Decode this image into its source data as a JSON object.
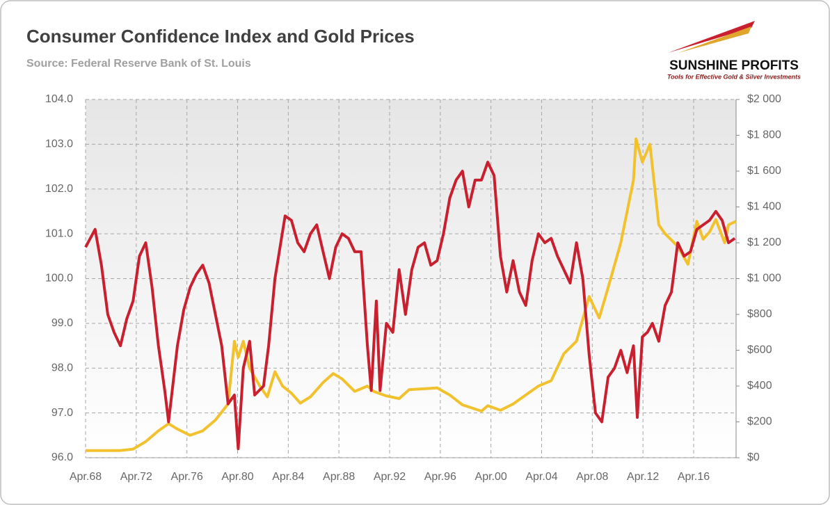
{
  "chart_data": {
    "type": "line",
    "title": "Consumer Confidence Index and Gold Prices",
    "subtitle": "Source: Federal Reserve Bank of St. Louis",
    "xlim": [
      1968.25,
      2019.6
    ],
    "xticks": [
      {
        "value": 1968.25,
        "label": "Apr.68"
      },
      {
        "value": 1972.25,
        "label": "Apr.72"
      },
      {
        "value": 1976.25,
        "label": "Apr.76"
      },
      {
        "value": 1980.25,
        "label": "Apr.80"
      },
      {
        "value": 1984.25,
        "label": "Apr.84"
      },
      {
        "value": 1988.25,
        "label": "Apr.88"
      },
      {
        "value": 1992.25,
        "label": "Apr.92"
      },
      {
        "value": 1996.25,
        "label": "Apr.96"
      },
      {
        "value": 2000.25,
        "label": "Apr.00"
      },
      {
        "value": 2004.25,
        "label": "Apr.04"
      },
      {
        "value": 2008.25,
        "label": "Apr.08"
      },
      {
        "value": 2012.25,
        "label": "Apr.12"
      },
      {
        "value": 2016.25,
        "label": "Apr.16"
      }
    ],
    "ylim": [
      96,
      104
    ],
    "yticks": [
      {
        "value": 96,
        "label": "96.0"
      },
      {
        "value": 97,
        "label": "97.0"
      },
      {
        "value": 98,
        "label": "98.0"
      },
      {
        "value": 99,
        "label": "99.0"
      },
      {
        "value": 100,
        "label": "100.0"
      },
      {
        "value": 101,
        "label": "101.0"
      },
      {
        "value": 102,
        "label": "102.0"
      },
      {
        "value": 103,
        "label": "103.0"
      },
      {
        "value": 104,
        "label": "104.0"
      }
    ],
    "y2lim": [
      0,
      2000
    ],
    "y2ticks": [
      {
        "value": 0,
        "label": "$0"
      },
      {
        "value": 200,
        "label": "$200"
      },
      {
        "value": 400,
        "label": "$400"
      },
      {
        "value": 600,
        "label": "$600"
      },
      {
        "value": 800,
        "label": "$800"
      },
      {
        "value": 1000,
        "label": "$1 000"
      },
      {
        "value": 1200,
        "label": "$1 200"
      },
      {
        "value": 1400,
        "label": "$1 400"
      },
      {
        "value": 1600,
        "label": "$1 600"
      },
      {
        "value": 1800,
        "label": "$1 800"
      },
      {
        "value": 2000,
        "label": "$2 000"
      }
    ],
    "grid": true,
    "series": [
      {
        "color": "#c8202f",
        "x": [
          1968.25,
          1969.0,
          1969.5,
          1970.0,
          1970.5,
          1971.0,
          1971.5,
          1972.0,
          1972.5,
          1973.0,
          1973.5,
          1974.0,
          1974.5,
          1974.8,
          1975.5,
          1976.0,
          1976.5,
          1977.0,
          1977.5,
          1978.0,
          1978.5,
          1979.0,
          1979.5,
          1980.0,
          1980.3,
          1980.7,
          1981.2,
          1981.6,
          1982.3,
          1982.7,
          1983.2,
          1983.6,
          1984.0,
          1984.5,
          1985.0,
          1985.5,
          1986.0,
          1986.5,
          1987.0,
          1987.5,
          1988.0,
          1988.5,
          1989.0,
          1989.5,
          1990.0,
          1990.5,
          1990.8,
          1991.2,
          1991.5,
          1992.0,
          1992.5,
          1993.0,
          1993.5,
          1994.0,
          1994.5,
          1995.0,
          1995.5,
          1996.0,
          1996.5,
          1997.0,
          1997.5,
          1998.0,
          1998.5,
          1999.0,
          1999.5,
          2000.0,
          2000.5,
          2001.0,
          2001.5,
          2002.0,
          2002.5,
          2003.0,
          2003.5,
          2004.0,
          2004.5,
          2005.0,
          2005.5,
          2006.0,
          2006.5,
          2007.0,
          2007.5,
          2008.0,
          2008.5,
          2009.0,
          2009.5,
          2010.0,
          2010.5,
          2011.0,
          2011.5,
          2011.8,
          2012.2,
          2012.6,
          2013.0,
          2013.5,
          2014.0,
          2014.5,
          2015.0,
          2015.5,
          2016.0,
          2016.5,
          2017.0,
          2017.5,
          2018.0,
          2018.5,
          2019.0,
          2019.5
        ],
        "values": [
          100.7,
          101.1,
          100.3,
          99.2,
          98.8,
          98.5,
          99.1,
          99.5,
          100.5,
          100.8,
          99.8,
          98.5,
          97.5,
          96.8,
          98.5,
          99.3,
          99.8,
          100.1,
          100.3,
          99.9,
          99.2,
          98.5,
          97.2,
          97.4,
          96.2,
          98.0,
          98.6,
          97.4,
          97.6,
          98.5,
          100.0,
          100.7,
          101.4,
          101.3,
          100.8,
          100.6,
          101.0,
          101.2,
          100.6,
          100.0,
          100.7,
          101.0,
          100.9,
          100.6,
          100.6,
          98.5,
          97.5,
          99.5,
          97.5,
          99.0,
          98.8,
          100.2,
          99.2,
          100.2,
          100.7,
          100.8,
          100.3,
          100.4,
          101.0,
          101.8,
          102.2,
          102.4,
          101.6,
          102.2,
          102.2,
          102.6,
          102.3,
          100.5,
          99.7,
          100.4,
          99.7,
          99.4,
          100.4,
          101.0,
          100.8,
          100.9,
          100.5,
          100.2,
          99.9,
          100.8,
          100.0,
          98.3,
          97.0,
          96.8,
          97.8,
          98.0,
          98.4,
          97.9,
          98.5,
          96.9,
          98.7,
          98.8,
          99.0,
          98.6,
          99.4,
          99.7,
          100.8,
          100.5,
          100.6,
          101.1,
          101.2,
          101.3,
          101.5,
          101.3,
          100.8,
          100.9
        ]
      },
      {
        "color": "#f2c12e",
        "axis": "y2",
        "x": [
          1968.25,
          1971.0,
          1972.0,
          1973.0,
          1974.0,
          1974.8,
          1975.5,
          1976.5,
          1977.5,
          1978.5,
          1979.5,
          1980.0,
          1980.3,
          1980.7,
          1981.2,
          1982.0,
          1982.6,
          1983.2,
          1983.8,
          1984.5,
          1985.2,
          1986.0,
          1987.0,
          1987.8,
          1988.5,
          1989.5,
          1990.5,
          1991.0,
          1992.0,
          1993.0,
          1993.8,
          1995.0,
          1996.0,
          1997.0,
          1998.0,
          1999.5,
          2000.0,
          2001.0,
          2002.0,
          2003.0,
          2004.0,
          2005.0,
          2006.0,
          2007.0,
          2008.0,
          2008.8,
          2009.5,
          2010.5,
          2011.5,
          2011.7,
          2012.2,
          2012.8,
          2013.5,
          2014.0,
          2015.0,
          2015.8,
          2016.5,
          2017.0,
          2017.5,
          2018.0,
          2018.7,
          2019.0,
          2019.6
        ],
        "values": [
          40,
          40,
          48,
          90,
          150,
          190,
          160,
          125,
          150,
          210,
          300,
          650,
          560,
          650,
          500,
          400,
          340,
          480,
          400,
          360,
          305,
          340,
          420,
          470,
          440,
          370,
          400,
          370,
          345,
          330,
          380,
          385,
          390,
          350,
          295,
          260,
          290,
          265,
          300,
          350,
          400,
          430,
          580,
          650,
          900,
          780,
          950,
          1200,
          1550,
          1780,
          1650,
          1750,
          1300,
          1250,
          1180,
          1080,
          1320,
          1220,
          1260,
          1330,
          1200,
          1300,
          1320
        ]
      }
    ]
  },
  "logo": {
    "name": "SUNSHINE PROFITS",
    "tagline": "Tools for Effective Gold & Silver Investments"
  }
}
